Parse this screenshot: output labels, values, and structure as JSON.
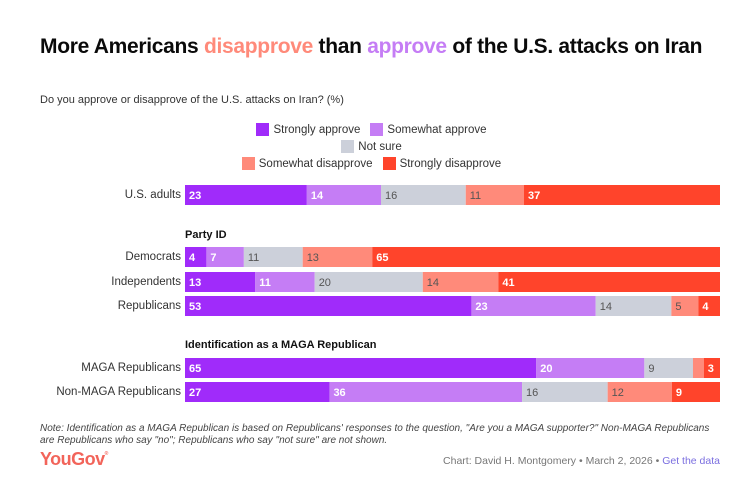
{
  "title": {
    "part1": "More Americans ",
    "highlight_disapprove": "disapprove",
    "part2": " than ",
    "highlight_approve": "approve",
    "part3": " of the U.S. attacks on Iran"
  },
  "subtitle": "Do you approve or disapprove of the U.S. attacks on Iran? (%)",
  "colors": {
    "strongly_approve": "#a02bfa",
    "somewhat_approve": "#c57df5",
    "not_sure": "#ccd0da",
    "somewhat_disapprove": "#ff8a7a",
    "strongly_disapprove": "#ff442b",
    "title_disapprove": "#ff8a7a",
    "title_approve": "#c57df5",
    "brand": "#f2645a",
    "link": "#7b6fe0"
  },
  "chart_data": {
    "type": "bar",
    "orientation": "horizontal",
    "stacked": true,
    "title": "More Americans disapprove than approve of the U.S. attacks on Iran",
    "subtitle": "Do you approve or disapprove of the U.S. attacks on Iran? (%)",
    "xlabel": "",
    "ylabel": "",
    "xlim": [
      0,
      100
    ],
    "legend": {
      "placement": "top-center",
      "entries": [
        "Strongly approve",
        "Somewhat approve",
        "Not sure",
        "Somewhat disapprove",
        "Strongly disapprove"
      ]
    },
    "series_names": [
      "Strongly approve",
      "Somewhat approve",
      "Not sure",
      "Somewhat disapprove",
      "Strongly disapprove"
    ],
    "sections": [
      {
        "heading": "",
        "rows": [
          {
            "label": "U.S. adults",
            "values": [
              23,
              14,
              16,
              11,
              37
            ],
            "labels": [
              "23",
              "14",
              "16",
              "11",
              "37"
            ]
          }
        ]
      },
      {
        "heading": "Party ID",
        "rows": [
          {
            "label": "Democrats",
            "values": [
              4,
              7,
              11,
              13,
              65
            ],
            "labels": [
              "4",
              "7",
              "11",
              "13",
              "65"
            ]
          },
          {
            "label": "Independents",
            "values": [
              13,
              11,
              20,
              14,
              41
            ],
            "labels": [
              "13",
              "11",
              "20",
              "14",
              "41"
            ]
          },
          {
            "label": "Republicans",
            "values": [
              53,
              23,
              14,
              5,
              4
            ],
            "labels": [
              "53",
              "23",
              "14",
              "5",
              "4"
            ]
          }
        ]
      },
      {
        "heading": "Identification as a MAGA Republican",
        "rows": [
          {
            "label": "MAGA Republicans",
            "values": [
              65,
              20,
              9,
              2,
              3
            ],
            "labels": [
              "65",
              "20",
              "9",
              "",
              "3"
            ]
          },
          {
            "label": "Non-MAGA Republicans",
            "values": [
              27,
              36,
              16,
              12,
              9
            ],
            "labels": [
              "27",
              "36",
              "16",
              "12",
              "9"
            ]
          }
        ]
      }
    ]
  },
  "note": "Note: Identification as a MAGA Republican is based on Republicans' responses to the question, \"Are you a MAGA supporter?\" Non-MAGA Republicans are Republicans who say \"no\"; Republicans who say \"not sure\" are not shown.",
  "footer": {
    "logo": "YouGov",
    "credit": "Chart: David H. Montgomery • March 2, 2026 • ",
    "link": "Get the data"
  }
}
